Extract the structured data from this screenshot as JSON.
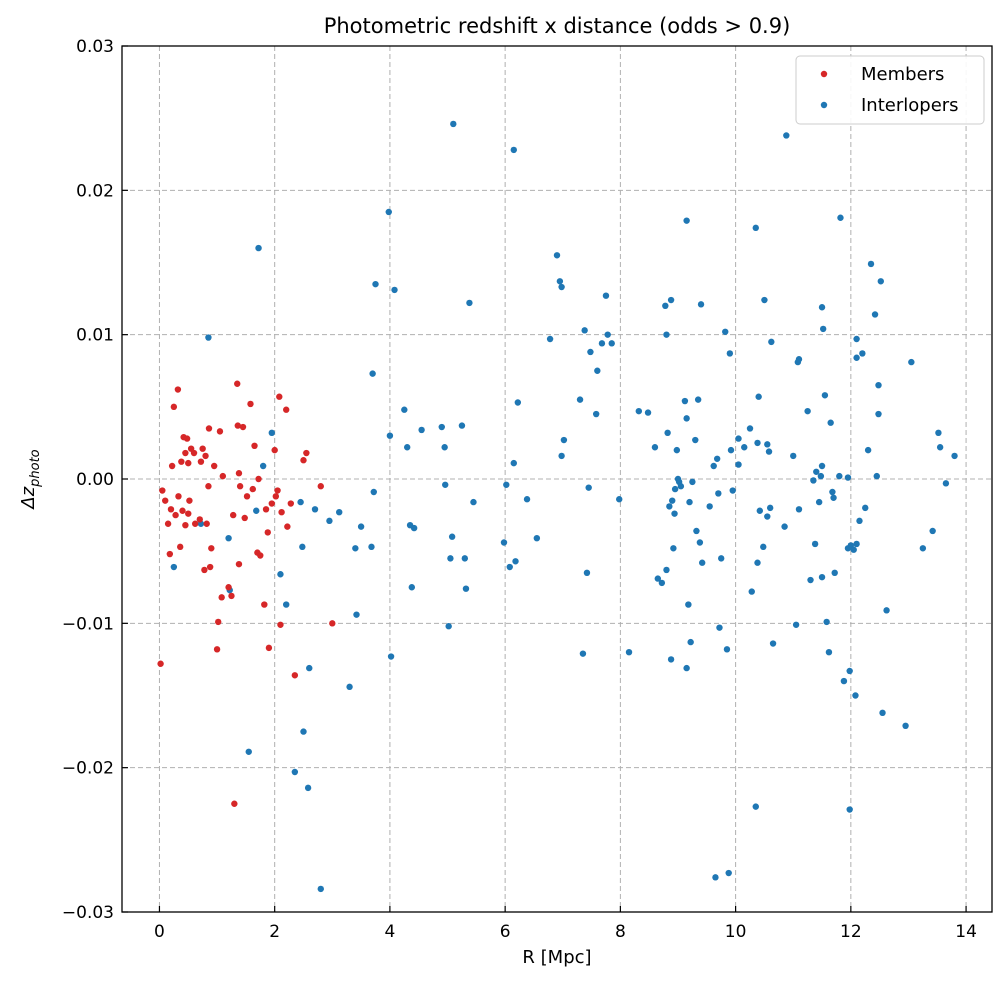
{
  "chart_data": {
    "type": "scatter",
    "title": "Photometric redshift x distance (odds > 0.9)",
    "xlabel": "R [Mpc]",
    "ylabel_main": "Δz",
    "ylabel_sub": "photo",
    "xlim": [
      -0.65,
      14.45
    ],
    "ylim": [
      -0.03,
      0.03
    ],
    "xticks": [
      "0",
      "2",
      "4",
      "6",
      "8",
      "10",
      "12",
      "14"
    ],
    "xtick_values": [
      0,
      2,
      4,
      6,
      8,
      10,
      12,
      14
    ],
    "yticks": [
      "−0.03",
      "−0.02",
      "−0.01",
      "0.00",
      "0.01",
      "0.02",
      "0.03"
    ],
    "ytick_values": [
      -0.03,
      -0.02,
      -0.01,
      0.0,
      0.01,
      0.02,
      0.03
    ],
    "grid": true,
    "legend_position": "top-right",
    "series": [
      {
        "name": "Members",
        "color": "#d62728",
        "points": [
          [
            0.02,
            -0.0128
          ],
          [
            0.05,
            -0.0008
          ],
          [
            0.1,
            -0.0015
          ],
          [
            0.15,
            -0.0031
          ],
          [
            0.18,
            -0.0052
          ],
          [
            0.2,
            -0.0021
          ],
          [
            0.22,
            0.0009
          ],
          [
            0.25,
            0.005
          ],
          [
            0.28,
            -0.0025
          ],
          [
            0.32,
            0.0062
          ],
          [
            0.33,
            -0.0012
          ],
          [
            0.36,
            -0.0047
          ],
          [
            0.38,
            0.0012
          ],
          [
            0.4,
            -0.0022
          ],
          [
            0.42,
            0.0029
          ],
          [
            0.45,
            -0.0032
          ],
          [
            0.45,
            0.0018
          ],
          [
            0.48,
            0.0028
          ],
          [
            0.5,
            0.0011
          ],
          [
            0.5,
            -0.0024
          ],
          [
            0.52,
            -0.0015
          ],
          [
            0.55,
            0.0021
          ],
          [
            0.6,
            0.0018
          ],
          [
            0.62,
            -0.0031
          ],
          [
            0.7,
            -0.0028
          ],
          [
            0.72,
            0.0012
          ],
          [
            0.75,
            0.0021
          ],
          [
            0.78,
            -0.0063
          ],
          [
            0.8,
            0.0016
          ],
          [
            0.82,
            -0.0031
          ],
          [
            0.85,
            -0.0005
          ],
          [
            0.86,
            0.0035
          ],
          [
            0.88,
            -0.0061
          ],
          [
            0.9,
            -0.0048
          ],
          [
            0.95,
            0.0009
          ],
          [
            1.0,
            -0.0118
          ],
          [
            1.02,
            -0.0099
          ],
          [
            1.05,
            0.0033
          ],
          [
            1.08,
            -0.0082
          ],
          [
            1.1,
            0.0002
          ],
          [
            1.2,
            -0.0075
          ],
          [
            1.25,
            -0.0081
          ],
          [
            1.28,
            -0.0025
          ],
          [
            1.3,
            -0.0225
          ],
          [
            1.35,
            0.0066
          ],
          [
            1.36,
            0.0037
          ],
          [
            1.38,
            0.0004
          ],
          [
            1.38,
            -0.0059
          ],
          [
            1.4,
            -0.0005
          ],
          [
            1.45,
            0.0036
          ],
          [
            1.48,
            -0.0027
          ],
          [
            1.52,
            -0.0012
          ],
          [
            1.58,
            0.0052
          ],
          [
            1.62,
            -0.0007
          ],
          [
            1.65,
            0.0023
          ],
          [
            1.7,
            -0.0051
          ],
          [
            1.72,
            0.0
          ],
          [
            1.75,
            -0.0053
          ],
          [
            1.82,
            -0.0087
          ],
          [
            1.85,
            -0.0021
          ],
          [
            1.88,
            -0.0037
          ],
          [
            1.9,
            -0.0117
          ],
          [
            1.95,
            -0.0017
          ],
          [
            2.0,
            0.002
          ],
          [
            2.02,
            -0.0012
          ],
          [
            2.05,
            -0.0008
          ],
          [
            2.08,
            0.0057
          ],
          [
            2.1,
            -0.0101
          ],
          [
            2.12,
            -0.0023
          ],
          [
            2.2,
            0.0048
          ],
          [
            2.22,
            -0.0033
          ],
          [
            2.28,
            -0.0017
          ],
          [
            2.35,
            -0.0136
          ],
          [
            2.5,
            0.0013
          ],
          [
            2.55,
            0.0018
          ],
          [
            2.8,
            -0.0005
          ],
          [
            3.0,
            -0.01
          ]
        ]
      },
      {
        "name": "Interlopers",
        "color": "#1f77b4",
        "points": [
          [
            0.25,
            -0.0061
          ],
          [
            0.72,
            -0.0031
          ],
          [
            0.85,
            0.0098
          ],
          [
            1.2,
            -0.0041
          ],
          [
            1.22,
            -0.0077
          ],
          [
            1.55,
            -0.0189
          ],
          [
            1.68,
            -0.0022
          ],
          [
            1.72,
            0.016
          ],
          [
            1.8,
            0.0009
          ],
          [
            1.95,
            0.0032
          ],
          [
            2.1,
            -0.0066
          ],
          [
            2.2,
            -0.0087
          ],
          [
            2.35,
            -0.0203
          ],
          [
            2.45,
            -0.0016
          ],
          [
            2.48,
            -0.0047
          ],
          [
            2.5,
            -0.0175
          ],
          [
            2.58,
            -0.0214
          ],
          [
            2.6,
            -0.0131
          ],
          [
            2.7,
            -0.0021
          ],
          [
            2.8,
            -0.0284
          ],
          [
            2.95,
            -0.0029
          ],
          [
            3.12,
            -0.0023
          ],
          [
            3.3,
            -0.0144
          ],
          [
            3.4,
            -0.0048
          ],
          [
            3.42,
            -0.0094
          ],
          [
            3.5,
            -0.0033
          ],
          [
            3.68,
            -0.0047
          ],
          [
            3.7,
            0.0073
          ],
          [
            3.72,
            -0.0009
          ],
          [
            3.75,
            0.0135
          ],
          [
            3.98,
            0.0185
          ],
          [
            4.0,
            0.003
          ],
          [
            4.02,
            -0.0123
          ],
          [
            4.08,
            0.0131
          ],
          [
            4.25,
            0.0048
          ],
          [
            4.3,
            0.0022
          ],
          [
            4.35,
            -0.0032
          ],
          [
            4.38,
            -0.0075
          ],
          [
            4.42,
            -0.0034
          ],
          [
            4.55,
            0.0034
          ],
          [
            4.9,
            0.0036
          ],
          [
            4.95,
            0.0022
          ],
          [
            4.96,
            -0.0004
          ],
          [
            5.02,
            -0.0102
          ],
          [
            5.05,
            -0.0055
          ],
          [
            5.08,
            -0.004
          ],
          [
            5.1,
            0.0246
          ],
          [
            5.25,
            0.0037
          ],
          [
            5.3,
            -0.0055
          ],
          [
            5.32,
            -0.0076
          ],
          [
            5.38,
            0.0122
          ],
          [
            5.45,
            -0.0016
          ],
          [
            5.98,
            -0.0044
          ],
          [
            6.02,
            -0.0004
          ],
          [
            6.08,
            -0.0061
          ],
          [
            6.15,
            0.0011
          ],
          [
            6.15,
            0.0228
          ],
          [
            6.18,
            -0.0057
          ],
          [
            6.22,
            0.0053
          ],
          [
            6.38,
            -0.0014
          ],
          [
            6.55,
            -0.0041
          ],
          [
            6.78,
            0.0097
          ],
          [
            6.9,
            0.0155
          ],
          [
            6.95,
            0.0137
          ],
          [
            6.98,
            0.0016
          ],
          [
            6.98,
            0.0133
          ],
          [
            7.02,
            0.0027
          ],
          [
            7.3,
            0.0055
          ],
          [
            7.35,
            -0.0121
          ],
          [
            7.38,
            0.0103
          ],
          [
            7.42,
            -0.0065
          ],
          [
            7.45,
            -0.0006
          ],
          [
            7.48,
            0.0088
          ],
          [
            7.58,
            0.0045
          ],
          [
            7.6,
            0.0075
          ],
          [
            7.68,
            0.0094
          ],
          [
            7.75,
            0.0127
          ],
          [
            7.78,
            0.01
          ],
          [
            7.85,
            0.0094
          ],
          [
            7.98,
            -0.0014
          ],
          [
            8.15,
            -0.012
          ],
          [
            8.32,
            0.0047
          ],
          [
            8.48,
            0.0046
          ],
          [
            8.6,
            0.0022
          ],
          [
            8.65,
            -0.0069
          ],
          [
            8.72,
            -0.0072
          ],
          [
            8.78,
            0.012
          ],
          [
            8.8,
            -0.0063
          ],
          [
            8.8,
            0.01
          ],
          [
            8.82,
            0.0032
          ],
          [
            8.85,
            -0.0019
          ],
          [
            8.88,
            -0.0125
          ],
          [
            8.88,
            0.0124
          ],
          [
            8.9,
            -0.0015
          ],
          [
            8.92,
            -0.0048
          ],
          [
            8.94,
            -0.0024
          ],
          [
            8.95,
            -0.0007
          ],
          [
            8.98,
            0.002
          ],
          [
            9.0,
            0.0
          ],
          [
            9.02,
            -0.0002
          ],
          [
            9.05,
            -0.0005
          ],
          [
            9.12,
            0.0054
          ],
          [
            9.15,
            0.0042
          ],
          [
            9.15,
            -0.0131
          ],
          [
            9.15,
            0.0179
          ],
          [
            9.18,
            -0.0087
          ],
          [
            9.2,
            -0.0016
          ],
          [
            9.22,
            -0.0113
          ],
          [
            9.25,
            -0.0002
          ],
          [
            9.3,
            0.0027
          ],
          [
            9.32,
            -0.0036
          ],
          [
            9.35,
            0.0055
          ],
          [
            9.38,
            -0.0044
          ],
          [
            9.4,
            0.0121
          ],
          [
            9.42,
            -0.0058
          ],
          [
            9.55,
            -0.0019
          ],
          [
            9.62,
            0.0009
          ],
          [
            9.65,
            -0.0276
          ],
          [
            9.68,
            0.0014
          ],
          [
            9.7,
            -0.001
          ],
          [
            9.72,
            -0.0103
          ],
          [
            9.75,
            -0.0055
          ],
          [
            9.82,
            0.0102
          ],
          [
            9.85,
            -0.0118
          ],
          [
            9.88,
            -0.0273
          ],
          [
            9.9,
            0.0087
          ],
          [
            9.92,
            0.002
          ],
          [
            9.95,
            -0.0008
          ],
          [
            10.05,
            0.0028
          ],
          [
            10.05,
            0.001
          ],
          [
            10.15,
            0.0022
          ],
          [
            10.25,
            0.0035
          ],
          [
            10.28,
            -0.0078
          ],
          [
            10.35,
            0.0174
          ],
          [
            10.35,
            -0.0227
          ],
          [
            10.38,
            0.0025
          ],
          [
            10.38,
            -0.0058
          ],
          [
            10.4,
            0.0057
          ],
          [
            10.42,
            -0.0022
          ],
          [
            10.48,
            -0.0047
          ],
          [
            10.5,
            0.0124
          ],
          [
            10.55,
            0.0024
          ],
          [
            10.55,
            -0.0026
          ],
          [
            10.58,
            0.0019
          ],
          [
            10.6,
            -0.002
          ],
          [
            10.62,
            0.0095
          ],
          [
            10.65,
            -0.0114
          ],
          [
            10.85,
            -0.0033
          ],
          [
            10.88,
            0.0238
          ],
          [
            11.0,
            0.0016
          ],
          [
            11.05,
            -0.0101
          ],
          [
            11.08,
            0.0081
          ],
          [
            11.1,
            0.0083
          ],
          [
            11.1,
            -0.0021
          ],
          [
            11.25,
            0.0047
          ],
          [
            11.3,
            -0.007
          ],
          [
            11.35,
            -0.0001
          ],
          [
            11.38,
            -0.0045
          ],
          [
            11.4,
            0.0005
          ],
          [
            11.45,
            -0.0016
          ],
          [
            11.48,
            0.0002
          ],
          [
            11.5,
            0.0119
          ],
          [
            11.5,
            0.0009
          ],
          [
            11.5,
            -0.0068
          ],
          [
            11.52,
            0.0104
          ],
          [
            11.55,
            0.0058
          ],
          [
            11.58,
            -0.0099
          ],
          [
            11.62,
            -0.012
          ],
          [
            11.65,
            0.0039
          ],
          [
            11.68,
            -0.0009
          ],
          [
            11.7,
            -0.0013
          ],
          [
            11.72,
            -0.0065
          ],
          [
            11.8,
            0.0002
          ],
          [
            11.82,
            0.0181
          ],
          [
            11.88,
            -0.014
          ],
          [
            11.95,
            0.0001
          ],
          [
            11.95,
            -0.0048
          ],
          [
            11.98,
            -0.0229
          ],
          [
            11.98,
            -0.0133
          ],
          [
            12.0,
            -0.0046
          ],
          [
            12.05,
            -0.0049
          ],
          [
            12.08,
            -0.015
          ],
          [
            12.1,
            0.0084
          ],
          [
            12.1,
            -0.0045
          ],
          [
            12.1,
            0.0097
          ],
          [
            12.15,
            -0.0029
          ],
          [
            12.2,
            0.0087
          ],
          [
            12.25,
            -0.002
          ],
          [
            12.3,
            0.002
          ],
          [
            12.35,
            0.0149
          ],
          [
            12.42,
            0.0114
          ],
          [
            12.45,
            0.0002
          ],
          [
            12.48,
            0.0045
          ],
          [
            12.48,
            0.0065
          ],
          [
            12.52,
            0.0137
          ],
          [
            12.55,
            -0.0162
          ],
          [
            12.62,
            -0.0091
          ],
          [
            12.95,
            -0.0171
          ],
          [
            13.05,
            0.0081
          ],
          [
            13.25,
            -0.0048
          ],
          [
            13.42,
            -0.0036
          ],
          [
            13.52,
            0.0032
          ],
          [
            13.55,
            0.0022
          ],
          [
            13.65,
            -0.0003
          ],
          [
            13.8,
            0.0016
          ]
        ]
      }
    ]
  }
}
